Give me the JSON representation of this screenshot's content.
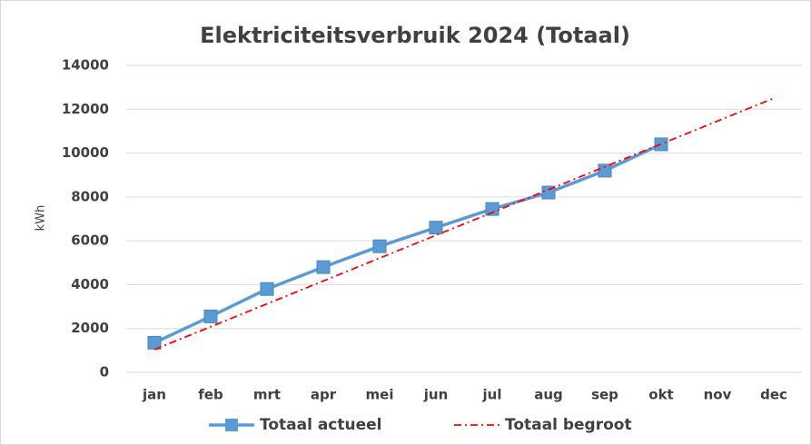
{
  "chart_data": {
    "type": "line",
    "title": "Elektriciteitsverbruik 2024 (Totaal)",
    "y_label": "kWh",
    "categories": [
      "jan",
      "feb",
      "mrt",
      "apr",
      "mei",
      "jun",
      "jul",
      "aug",
      "sep",
      "okt",
      "nov",
      "dec"
    ],
    "series": [
      {
        "name": "Totaal actueel",
        "color": "#5b9bd5",
        "style": "solid",
        "marker": "square",
        "values": [
          1350,
          2550,
          3800,
          4800,
          5750,
          6600,
          7450,
          8200,
          9200,
          10400,
          null,
          null
        ]
      },
      {
        "name": "Totaal begroot",
        "color": "#ff0000",
        "style": "dashdot",
        "marker": "none",
        "values": [
          1040,
          2080,
          3125,
          4165,
          5210,
          6250,
          7290,
          8330,
          9375,
          10415,
          11460,
          12500
        ]
      }
    ],
    "ylim": [
      0,
      14000
    ],
    "yticks": [
      0,
      2000,
      4000,
      6000,
      8000,
      10000,
      12000,
      14000
    ],
    "grid": true
  }
}
